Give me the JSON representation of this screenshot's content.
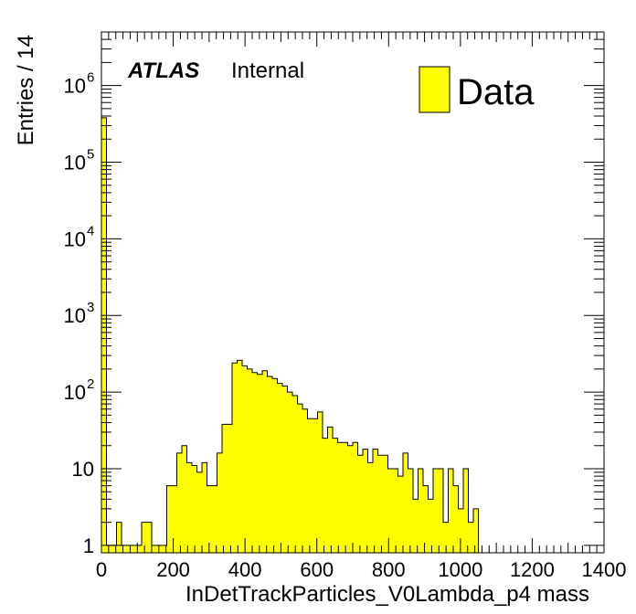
{
  "chart_data": {
    "type": "bar",
    "style": "filled-step-histogram",
    "xlabel": "InDetTrackParticles_V0Lambda_p4 mass",
    "ylabel": "Entries / 14",
    "xlim": [
      0,
      1400
    ],
    "ylim": [
      0.8,
      5000000
    ],
    "yscale": "log",
    "bin_width": 14,
    "grid": false,
    "fill_color": "#ffff00",
    "edge_color": "#000000",
    "x_ticks": [
      "0",
      "200",
      "400",
      "600",
      "800",
      "1000",
      "1200",
      "1400"
    ],
    "y_ticks": [
      {
        "value": 1,
        "label": "1"
      },
      {
        "value": 10,
        "label": "10"
      },
      {
        "value": 100,
        "label": "10",
        "exp": "2"
      },
      {
        "value": 1000,
        "label": "10",
        "exp": "3"
      },
      {
        "value": 10000,
        "label": "10",
        "exp": "4"
      },
      {
        "value": 100000,
        "label": "10",
        "exp": "5"
      },
      {
        "value": 1000000,
        "label": "10",
        "exp": "6"
      }
    ],
    "atlas_label": "ATLAS",
    "atlas_sublabel": "Internal",
    "legend": {
      "position": "top-right",
      "entries": [
        "Data"
      ]
    },
    "series": [
      {
        "name": "Data",
        "bins_x": [
          0,
          14,
          28,
          42,
          56,
          70,
          84,
          98,
          112,
          126,
          140,
          154,
          168,
          182,
          196,
          210,
          224,
          238,
          252,
          266,
          280,
          294,
          308,
          322,
          336,
          350,
          364,
          378,
          392,
          406,
          420,
          434,
          448,
          462,
          476,
          490,
          504,
          518,
          532,
          546,
          560,
          574,
          588,
          602,
          616,
          630,
          644,
          658,
          672,
          686,
          700,
          714,
          728,
          742,
          756,
          770,
          784,
          798,
          812,
          826,
          840,
          854,
          868,
          882,
          896,
          910,
          924,
          938,
          952,
          966,
          980,
          994,
          1008,
          1022,
          1036,
          1050
        ],
        "values": [
          380000,
          1,
          1,
          2,
          1,
          1,
          1,
          1,
          2,
          2,
          1,
          1,
          1,
          6,
          6,
          16,
          20,
          12,
          11,
          9,
          12,
          6,
          6,
          16,
          38,
          38,
          240,
          260,
          220,
          200,
          180,
          170,
          190,
          160,
          150,
          130,
          120,
          100,
          90,
          70,
          60,
          45,
          45,
          55,
          25,
          35,
          25,
          22,
          22,
          20,
          22,
          15,
          18,
          12,
          18,
          15,
          15,
          10,
          10,
          8,
          16,
          10,
          4,
          10,
          6,
          4,
          10,
          10,
          2,
          10,
          6,
          3,
          10,
          2,
          3,
          0
        ]
      }
    ]
  }
}
